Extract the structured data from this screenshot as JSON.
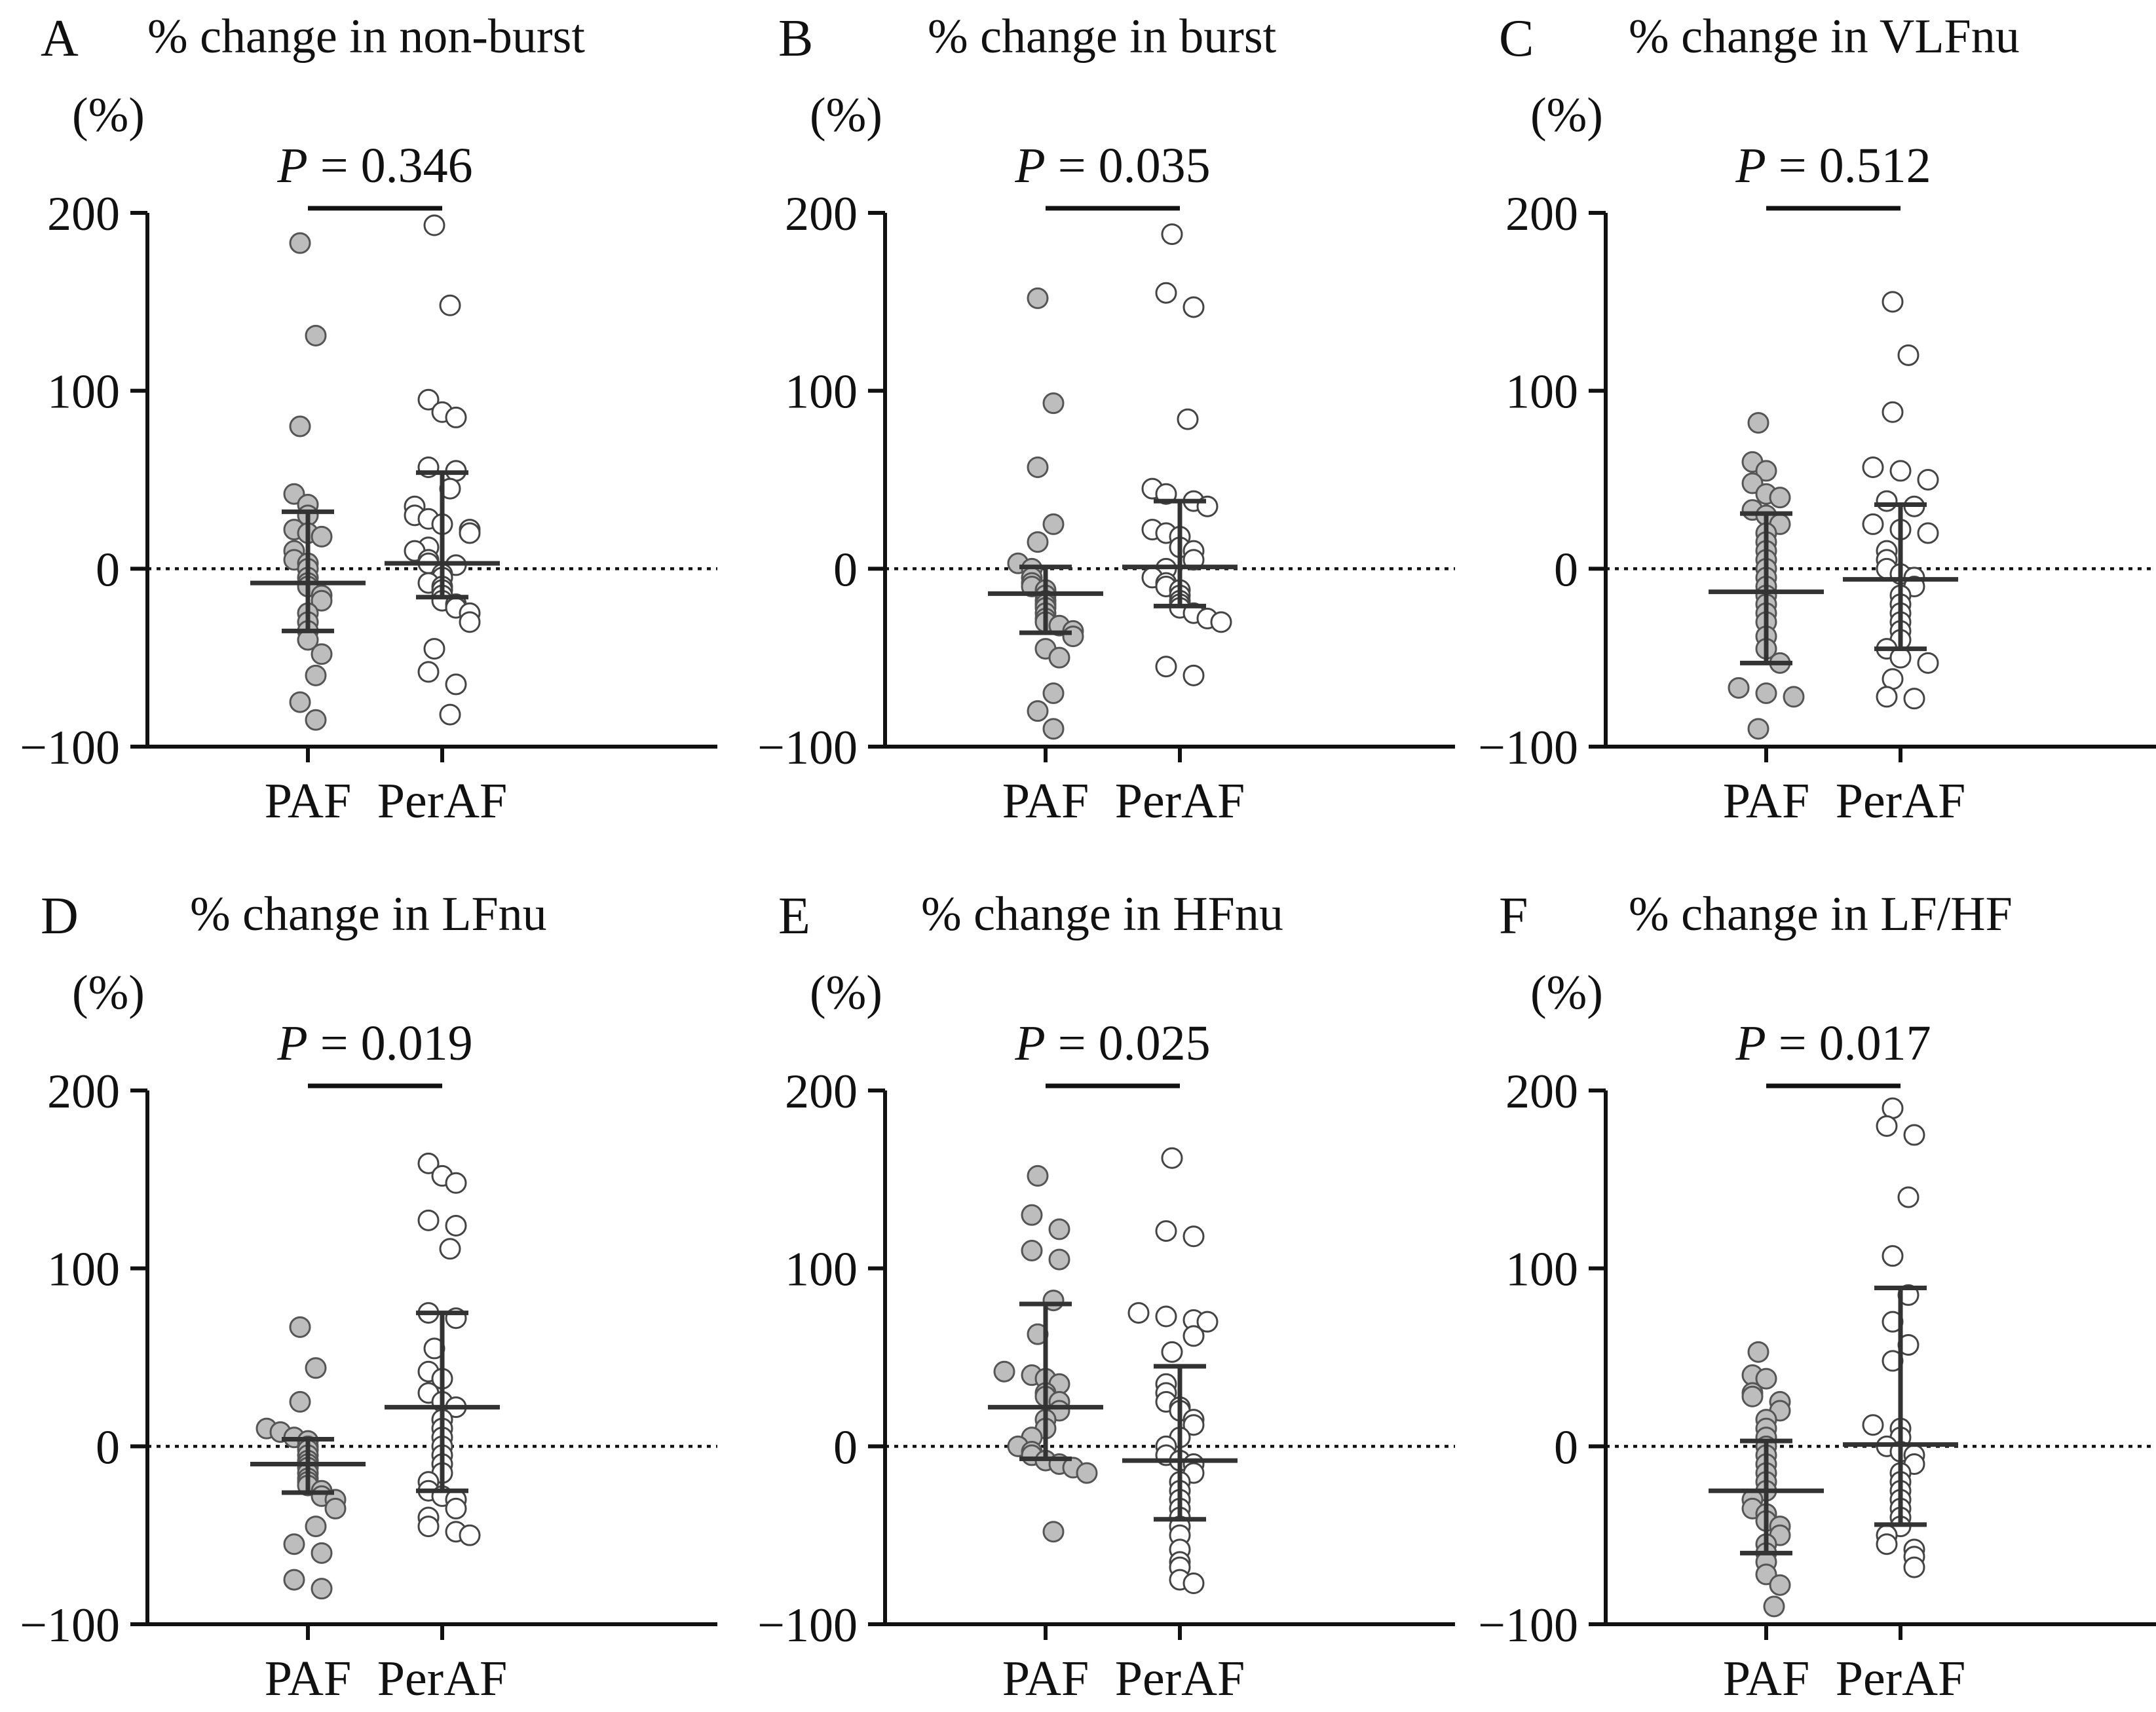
{
  "chart_data": [
    {
      "type": "scatter",
      "panel": "A",
      "title": "% change in non-burst",
      "ylabel": "(%)",
      "ylim": [
        -100,
        200
      ],
      "yticks": [
        "200",
        "100",
        "0",
        "−100"
      ],
      "categories": [
        "PAF",
        "PerAF"
      ],
      "p_label": "P",
      "p_value": "= 0.346",
      "series": [
        {
          "name": "PAF",
          "style": "filled",
          "values": [
            183,
            131,
            80,
            42,
            36,
            30,
            22,
            20,
            18,
            10,
            5,
            3,
            0,
            -5,
            -8,
            -10,
            -15,
            -18,
            -25,
            -30,
            -35,
            -40,
            -48,
            -60,
            -75,
            -85
          ],
          "center": -8,
          "lower": -35,
          "upper": 32
        },
        {
          "name": "PerAF",
          "style": "open",
          "values": [
            193,
            148,
            95,
            88,
            85,
            57,
            55,
            45,
            35,
            30,
            28,
            25,
            22,
            20,
            12,
            10,
            5,
            3,
            2,
            -3,
            -5,
            -8,
            -10,
            -12,
            -15,
            -18,
            -20,
            -22,
            -25,
            -30,
            -45,
            -58,
            -65,
            -82
          ],
          "center": 3,
          "lower": -16,
          "upper": 54
        }
      ]
    },
    {
      "type": "scatter",
      "panel": "B",
      "title": "% change in burst",
      "ylabel": "(%)",
      "ylim": [
        -100,
        200
      ],
      "yticks": [
        "200",
        "100",
        "0",
        "−100"
      ],
      "categories": [
        "PAF",
        "PerAF"
      ],
      "p_label": "P",
      "p_value": "= 0.035",
      "series": [
        {
          "name": "PAF",
          "style": "filled",
          "values": [
            152,
            93,
            57,
            25,
            15,
            3,
            0,
            -5,
            -8,
            -10,
            -12,
            -15,
            -18,
            -20,
            -22,
            -25,
            -28,
            -30,
            -32,
            -35,
            -38,
            -45,
            -50,
            -70,
            -80,
            -90
          ],
          "center": -14,
          "lower": -36,
          "upper": 1
        },
        {
          "name": "PerAF",
          "style": "open",
          "values": [
            188,
            155,
            147,
            84,
            45,
            42,
            38,
            35,
            22,
            20,
            18,
            12,
            10,
            5,
            0,
            -5,
            -8,
            -10,
            -12,
            -15,
            -18,
            -20,
            -22,
            -25,
            -28,
            -30,
            -55,
            -60
          ],
          "center": 1,
          "lower": -21,
          "upper": 38
        }
      ]
    },
    {
      "type": "scatter",
      "panel": "C",
      "title": "% change in VLFnu",
      "ylabel": "(%)",
      "ylim": [
        -100,
        200
      ],
      "yticks": [
        "200",
        "100",
        "0",
        "−100"
      ],
      "categories": [
        "PAF",
        "PerAF"
      ],
      "p_label": "P",
      "p_value": "= 0.512",
      "series": [
        {
          "name": "PAF",
          "style": "filled",
          "values": [
            82,
            60,
            55,
            48,
            42,
            40,
            33,
            30,
            25,
            20,
            15,
            10,
            5,
            0,
            -5,
            -10,
            -15,
            -20,
            -25,
            -30,
            -38,
            -45,
            -53,
            -67,
            -70,
            -72,
            -90
          ],
          "center": -13,
          "lower": -53,
          "upper": 31
        },
        {
          "name": "PerAF",
          "style": "open",
          "values": [
            150,
            120,
            88,
            57,
            55,
            50,
            38,
            35,
            25,
            22,
            20,
            10,
            5,
            0,
            -3,
            -5,
            -10,
            -15,
            -20,
            -25,
            -30,
            -35,
            -40,
            -45,
            -50,
            -53,
            -62,
            -72,
            -73
          ],
          "center": -6,
          "lower": -45,
          "upper": 36
        }
      ]
    },
    {
      "type": "scatter",
      "panel": "D",
      "title": "% change in LFnu",
      "ylabel": "(%)",
      "ylim": [
        -100,
        200
      ],
      "yticks": [
        "200",
        "100",
        "0",
        "−100"
      ],
      "categories": [
        "PAF",
        "PerAF"
      ],
      "p_label": "P",
      "p_value": "= 0.019",
      "series": [
        {
          "name": "PAF",
          "style": "filled",
          "values": [
            67,
            44,
            25,
            10,
            8,
            5,
            3,
            0,
            -2,
            -5,
            -8,
            -10,
            -12,
            -15,
            -18,
            -20,
            -22,
            -25,
            -28,
            -30,
            -35,
            -45,
            -55,
            -60,
            -75,
            -80
          ],
          "center": -10,
          "lower": -26,
          "upper": 4
        },
        {
          "name": "PerAF",
          "style": "open",
          "values": [
            159,
            152,
            148,
            127,
            124,
            111,
            75,
            72,
            55,
            42,
            38,
            30,
            25,
            22,
            15,
            10,
            5,
            0,
            -5,
            -10,
            -15,
            -20,
            -25,
            -28,
            -30,
            -35,
            -40,
            -45,
            -48,
            -50
          ],
          "center": 22,
          "lower": -25,
          "upper": 75
        }
      ]
    },
    {
      "type": "scatter",
      "panel": "E",
      "title": "% change in HFnu",
      "ylabel": "(%)",
      "ylim": [
        -100,
        200
      ],
      "yticks": [
        "200",
        "100",
        "0",
        "−100"
      ],
      "categories": [
        "PAF",
        "PerAF"
      ],
      "p_label": "P",
      "p_value": "= 0.025",
      "series": [
        {
          "name": "PAF",
          "style": "filled",
          "values": [
            152,
            130,
            122,
            110,
            105,
            82,
            63,
            42,
            40,
            38,
            35,
            30,
            28,
            25,
            20,
            15,
            10,
            5,
            0,
            -3,
            -5,
            -8,
            -10,
            -12,
            -15,
            -48
          ],
          "center": 22,
          "lower": -7,
          "upper": 80
        },
        {
          "name": "PerAF",
          "style": "open",
          "values": [
            162,
            121,
            118,
            75,
            73,
            71,
            70,
            62,
            53,
            35,
            30,
            25,
            22,
            20,
            15,
            12,
            5,
            0,
            -5,
            -8,
            -10,
            -15,
            -20,
            -25,
            -30,
            -35,
            -40,
            -45,
            -50,
            -58,
            -65,
            -68,
            -75,
            -77
          ],
          "center": -8,
          "lower": -41,
          "upper": 45
        }
      ]
    },
    {
      "type": "scatter",
      "panel": "F",
      "title": "% change in LF/HF",
      "ylabel": "(%)",
      "ylim": [
        -100,
        200
      ],
      "yticks": [
        "200",
        "100",
        "0",
        "−100"
      ],
      "categories": [
        "PAF",
        "PerAF"
      ],
      "p_label": "P",
      "p_value": "= 0.017",
      "series": [
        {
          "name": "PAF",
          "style": "filled",
          "values": [
            53,
            40,
            38,
            30,
            28,
            25,
            20,
            15,
            10,
            5,
            0,
            -5,
            -10,
            -15,
            -20,
            -25,
            -30,
            -35,
            -38,
            -42,
            -45,
            -50,
            -55,
            -60,
            -65,
            -72,
            -78,
            -90
          ],
          "center": -25,
          "lower": -60,
          "upper": 3
        },
        {
          "name": "PerAF",
          "style": "open",
          "values": [
            190,
            180,
            175,
            140,
            107,
            85,
            70,
            57,
            48,
            12,
            10,
            5,
            0,
            -3,
            -5,
            -10,
            -15,
            -20,
            -25,
            -30,
            -35,
            -40,
            -45,
            -50,
            -55,
            -58,
            -62,
            -68
          ],
          "center": 1,
          "lower": -44,
          "upper": 89
        }
      ]
    }
  ]
}
